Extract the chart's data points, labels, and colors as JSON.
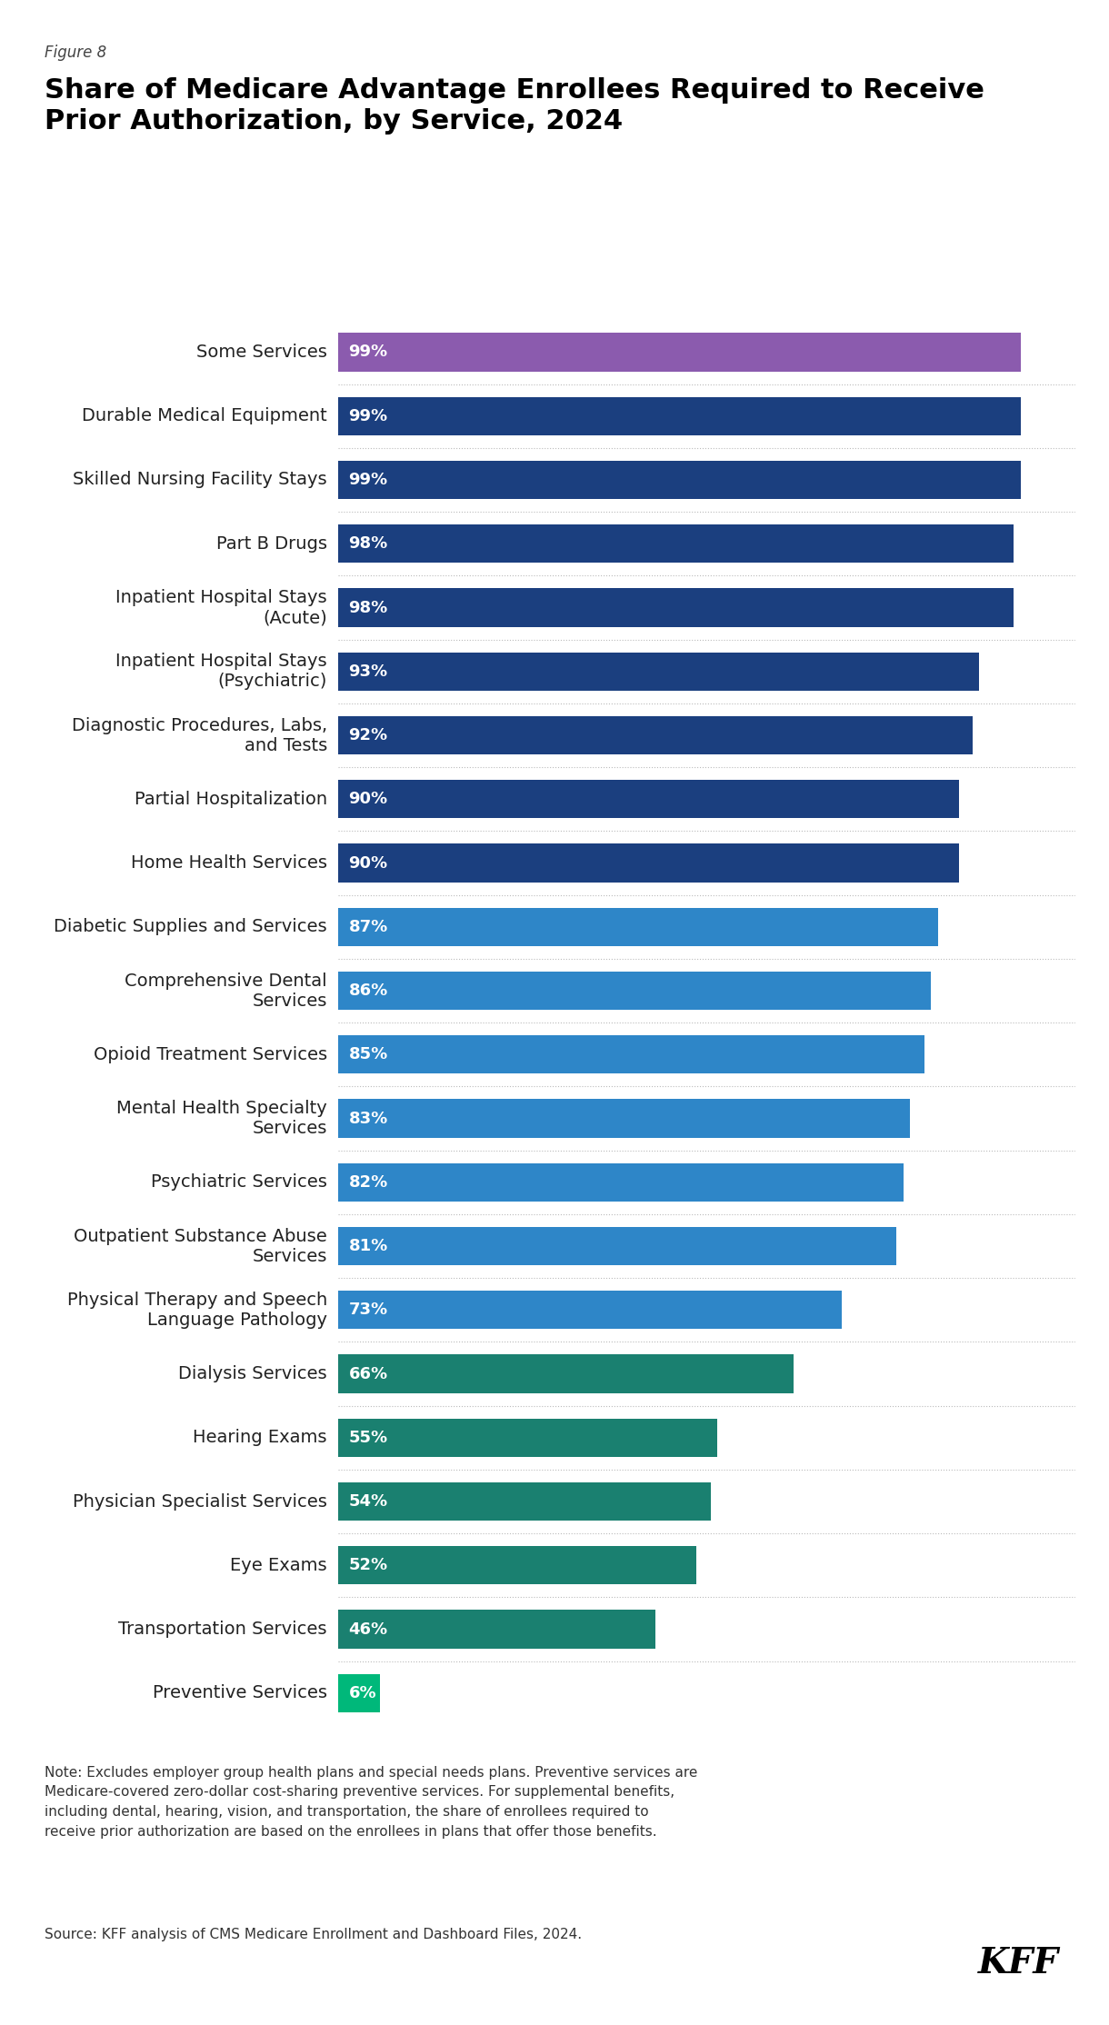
{
  "figure_label": "Figure 8",
  "title": "Share of Medicare Advantage Enrollees Required to Receive\nPrior Authorization, by Service, 2024",
  "categories": [
    "Some Services",
    "Durable Medical Equipment",
    "Skilled Nursing Facility Stays",
    "Part B Drugs",
    "Inpatient Hospital Stays\n(Acute)",
    "Inpatient Hospital Stays\n(Psychiatric)",
    "Diagnostic Procedures, Labs,\nand Tests",
    "Partial Hospitalization",
    "Home Health Services",
    "Diabetic Supplies and Services",
    "Comprehensive Dental\nServices",
    "Opioid Treatment Services",
    "Mental Health Specialty\nServices",
    "Psychiatric Services",
    "Outpatient Substance Abuse\nServices",
    "Physical Therapy and Speech\nLanguage Pathology",
    "Dialysis Services",
    "Hearing Exams",
    "Physician Specialist Services",
    "Eye Exams",
    "Transportation Services",
    "Preventive Services"
  ],
  "values": [
    99,
    99,
    99,
    98,
    98,
    93,
    92,
    90,
    90,
    87,
    86,
    85,
    83,
    82,
    81,
    73,
    66,
    55,
    54,
    52,
    46,
    6
  ],
  "bar_colors": [
    "#8B5BAE",
    "#1B3F7F",
    "#1B3F7F",
    "#1B3F7F",
    "#1B3F7F",
    "#1B3F7F",
    "#1B3F7F",
    "#1B3F7F",
    "#1B3F7F",
    "#2E86C8",
    "#2E86C8",
    "#2E86C8",
    "#2E86C8",
    "#2E86C8",
    "#2E86C8",
    "#2E86C8",
    "#1A8070",
    "#1A8070",
    "#1A8070",
    "#1A8070",
    "#1A8070",
    "#00B87A"
  ],
  "note": "Note: Excludes employer group health plans and special needs plans. Preventive services are\nMedicare-covered zero-dollar cost-sharing preventive services. For supplemental benefits,\nincluding dental, hearing, vision, and transportation, the share of enrollees required to\nreceive prior authorization are based on the enrollees in plans that offer those benefits.",
  "source": "Source: KFF analysis of CMS Medicare Enrollment and Dashboard Files, 2024.",
  "background_color": "#FFFFFF",
  "bar_label_fontsize": 13,
  "cat_label_fontsize": 14,
  "title_fontsize": 22,
  "fig_label_fontsize": 12,
  "note_fontsize": 11,
  "kff_fontsize": 28
}
